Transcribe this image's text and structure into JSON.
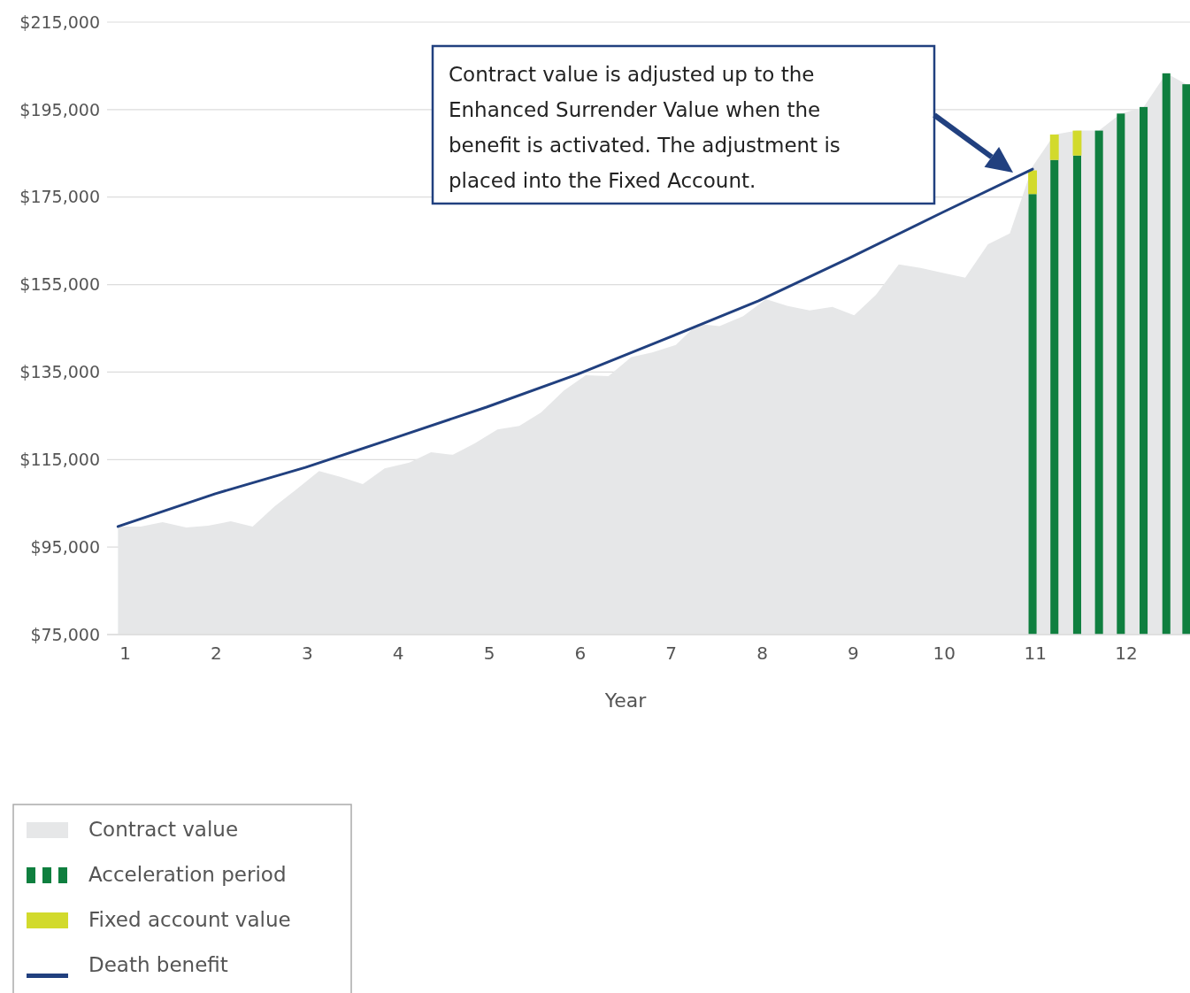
{
  "chart_data": {
    "type": "area",
    "xlabel": "Year",
    "xlim": [
      0.8,
      12.7
    ],
    "xticks": [
      1,
      2,
      3,
      4,
      5,
      6,
      7,
      8,
      9,
      10,
      11,
      12
    ],
    "ylim": [
      75000,
      215000
    ],
    "yticks": [
      {
        "value": 75000,
        "label": "$75,000"
      },
      {
        "value": 95000,
        "label": "$95,000"
      },
      {
        "value": 115000,
        "label": "$115,000"
      },
      {
        "value": 135000,
        "label": "$135,000"
      },
      {
        "value": 155000,
        "label": "$155,000"
      },
      {
        "value": 175000,
        "label": "$175,000"
      },
      {
        "value": 195000,
        "label": "$195,000"
      },
      {
        "value": 215000,
        "label": "$215,000"
      }
    ],
    "grid": "y",
    "legend": "bottom left",
    "series": [
      {
        "name": "Contract value",
        "color": "#e6e7e8",
        "x": [
          0.92,
          1.17,
          1.41,
          1.67,
          1.91,
          2.16,
          2.4,
          2.64,
          2.88,
          3.13,
          3.37,
          3.61,
          3.85,
          4.12,
          4.36,
          4.6,
          4.84,
          5.09,
          5.33,
          5.57,
          5.82,
          6.06,
          6.31,
          6.56,
          6.79,
          7.05,
          7.29,
          7.53,
          7.79,
          8.04,
          8.28,
          8.52,
          8.77,
          9.01,
          9.25,
          9.5,
          9.74,
          9.98,
          10.23,
          10.48,
          10.72,
          10.97,
          11.21,
          11.46,
          11.7,
          11.94,
          12.19,
          12.44,
          12.66
        ],
        "values": [
          99700,
          99700,
          100700,
          99500,
          99900,
          100900,
          99700,
          104300,
          108200,
          112400,
          111000,
          109400,
          113000,
          114300,
          116700,
          116100,
          118700,
          121900,
          122700,
          125800,
          130800,
          134300,
          134100,
          138400,
          139500,
          141200,
          146000,
          145500,
          147800,
          151700,
          150100,
          149100,
          149900,
          148000,
          152700,
          159600,
          158800,
          157700,
          156600,
          164200,
          166700,
          182000,
          189300,
          190200,
          190200,
          194100,
          195600,
          203300,
          200800
        ]
      },
      {
        "name": "Acceleration period",
        "type": "bar",
        "color": "#0f7f3f",
        "x": [
          10.97,
          11.21,
          11.46,
          11.7,
          11.94,
          12.19,
          12.44,
          12.66
        ],
        "values": [
          175700,
          183500,
          184500,
          190200,
          194100,
          195600,
          203300,
          200800
        ]
      },
      {
        "name": "Fixed account value",
        "type": "bar",
        "color": "#d2da2c",
        "x": [
          10.97,
          11.21,
          11.46
        ],
        "base": [
          175700,
          183500,
          184500
        ],
        "values": [
          5400,
          5800,
          5700
        ]
      },
      {
        "name": "Death benefit",
        "type": "line",
        "color": "#21407f",
        "x": [
          0.92,
          1.99,
          2.98,
          3.98,
          4.97,
          5.97,
          6.96,
          7.96,
          8.95,
          9.98,
          10.97
        ],
        "values": [
          99700,
          107200,
          113200,
          120100,
          127000,
          134500,
          142800,
          151300,
          161000,
          171500,
          181400
        ]
      }
    ],
    "annotations": [
      "Contract value is adjusted up to the Enhanced Surrender Value when the benefit is activated. The adjustment is placed into the Fixed Account."
    ]
  }
}
